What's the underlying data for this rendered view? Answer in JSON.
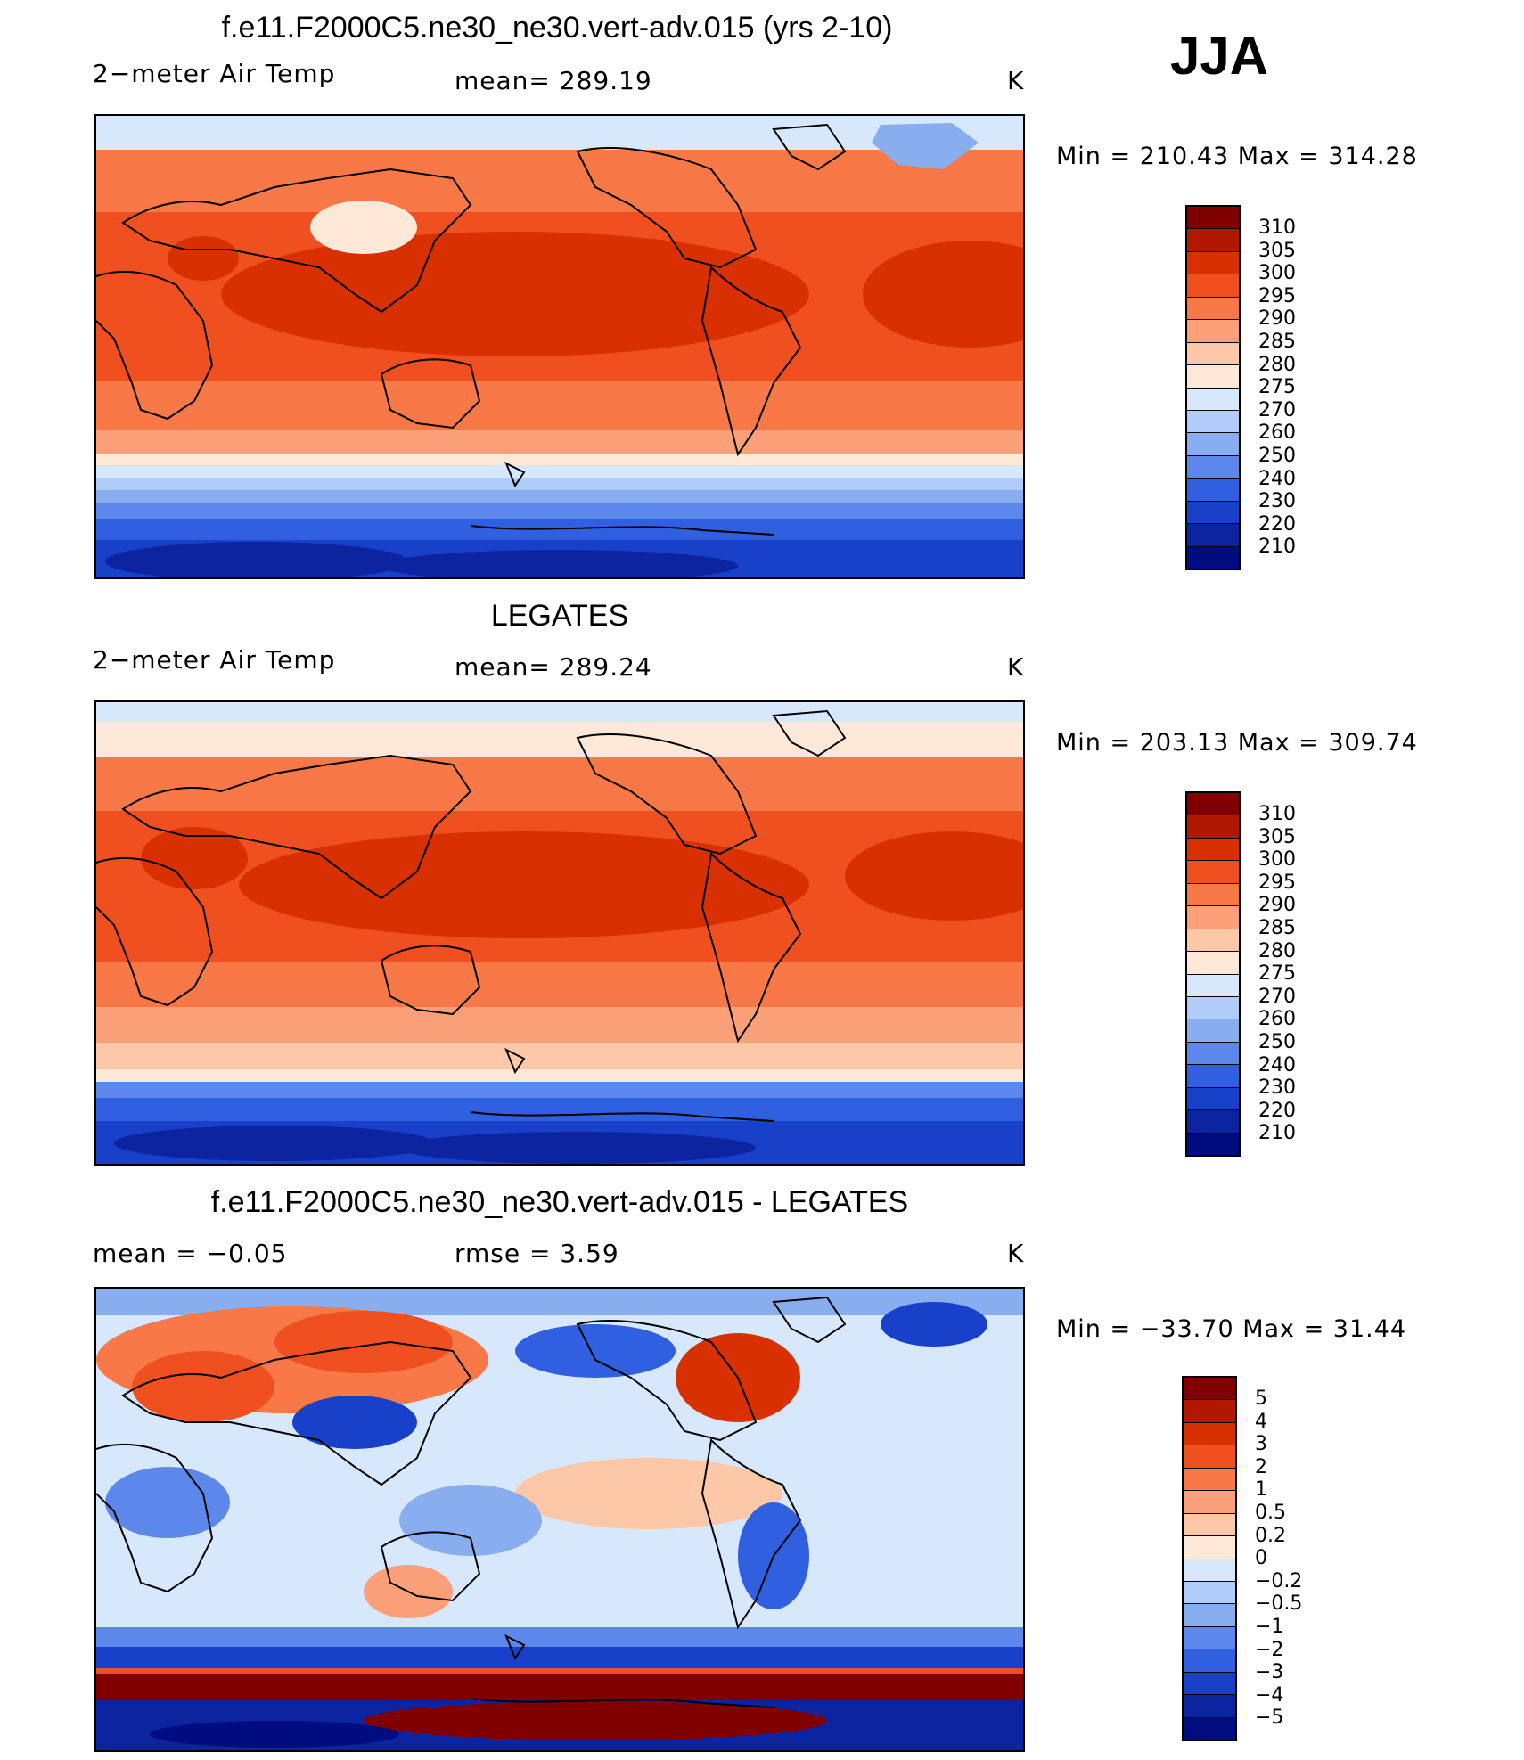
{
  "season": "JJA",
  "panels": [
    {
      "title": "f.e11.F2000C5.ne30_ne30.vert-adv.015 (yrs 2-10)",
      "variable": "2−meter Air Temp",
      "stat": "mean=  289.19",
      "units": "K",
      "minmax": "Min  =  210.43  Max  =  314.28",
      "ticks": [
        "310",
        "305",
        "300",
        "295",
        "290",
        "285",
        "280",
        "275",
        "270",
        "260",
        "250",
        "240",
        "230",
        "220",
        "210"
      ],
      "colors": [
        "#800000",
        "#b01800",
        "#d83000",
        "#f05020",
        "#f87848",
        "#fca07a",
        "#fdc8a8",
        "#fee8d8",
        "#d8e8fc",
        "#b0ccf8",
        "#88aef0",
        "#5c88ec",
        "#3060e0",
        "#1840c8",
        "#0c24a0",
        "#000c80"
      ]
    },
    {
      "title": "LEGATES",
      "variable": "2−meter Air Temp",
      "stat": "mean=  289.24",
      "units": "K",
      "minmax": "Min  =  203.13  Max  =  309.74",
      "ticks": [
        "310",
        "305",
        "300",
        "295",
        "290",
        "285",
        "280",
        "275",
        "270",
        "260",
        "250",
        "240",
        "230",
        "220",
        "210"
      ],
      "colors": [
        "#800000",
        "#b01800",
        "#d83000",
        "#f05020",
        "#f87848",
        "#fca07a",
        "#fdc8a8",
        "#fee8d8",
        "#d8e8fc",
        "#b0ccf8",
        "#88aef0",
        "#5c88ec",
        "#3060e0",
        "#1840c8",
        "#0c24a0",
        "#000c80"
      ]
    },
    {
      "title": "f.e11.F2000C5.ne30_ne30.vert-adv.015 - LEGATES",
      "stat_left": "mean  =     −0.05",
      "stat": "rmse  =     3.59",
      "units": "K",
      "minmax": "Min  =  −33.70  Max  =    31.44",
      "ticks": [
        "5",
        "4",
        "3",
        "2",
        "1",
        "0.5",
        "0.2",
        "0",
        "−0.2",
        "−0.5",
        "−1",
        "−2",
        "−3",
        "−4",
        "−5"
      ],
      "colors": [
        "#800000",
        "#b01800",
        "#d83000",
        "#f05020",
        "#f87848",
        "#fca07a",
        "#fdc8a8",
        "#fee8d8",
        "#d8e8fc",
        "#b0ccf8",
        "#88aef0",
        "#5c88ec",
        "#3060e0",
        "#1840c8",
        "#0c24a0",
        "#000c80"
      ]
    }
  ]
}
